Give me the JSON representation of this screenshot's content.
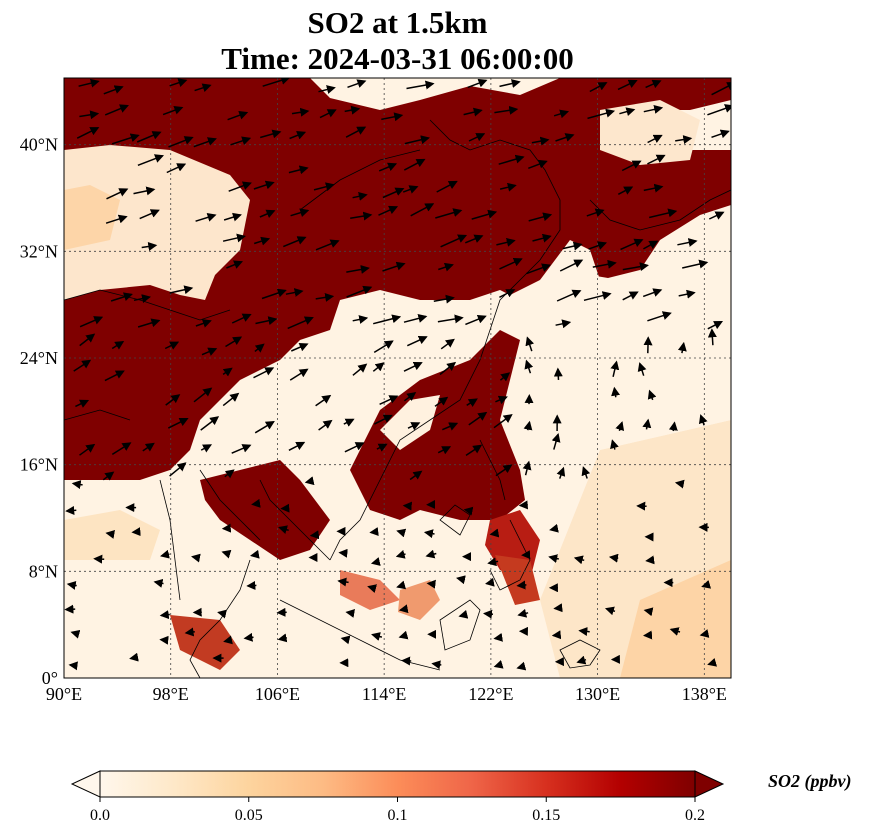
{
  "title": {
    "line1": "SO2 at 1.5km",
    "line2": "Time: 2024-03-31 06:00:00"
  },
  "map": {
    "lon_range": [
      90,
      140
    ],
    "lat_range": [
      0,
      45
    ],
    "x_ticks": [
      "90°E",
      "98°E",
      "106°E",
      "114°E",
      "122°E",
      "130°E",
      "138°E"
    ],
    "x_tick_values": [
      90,
      98,
      106,
      114,
      122,
      130,
      138
    ],
    "y_ticks": [
      "0°",
      "8°N",
      "16°N",
      "24°N",
      "32°N",
      "40°N"
    ],
    "y_tick_values": [
      0,
      8,
      16,
      24,
      32,
      40
    ],
    "gridlines": true,
    "colormap": "OrRd",
    "high_concentration_color": "#7f0000",
    "background_low_color": "#fff7ec"
  },
  "colorbar": {
    "title": "SO2 (ppbv)",
    "min": 0.0,
    "max": 0.2,
    "extend": "both",
    "orientation": "horizontal",
    "tick_labels": [
      "0.0",
      "0.05",
      "0.1",
      "0.15",
      "0.2"
    ],
    "tick_values": [
      0.0,
      0.05,
      0.1,
      0.15,
      0.2
    ],
    "colors": [
      "#fff7ec",
      "#fee8c8",
      "#fdd49e",
      "#fdbb84",
      "#fc8d59",
      "#ef6548",
      "#d7301f",
      "#b30000",
      "#7f0000"
    ]
  }
}
